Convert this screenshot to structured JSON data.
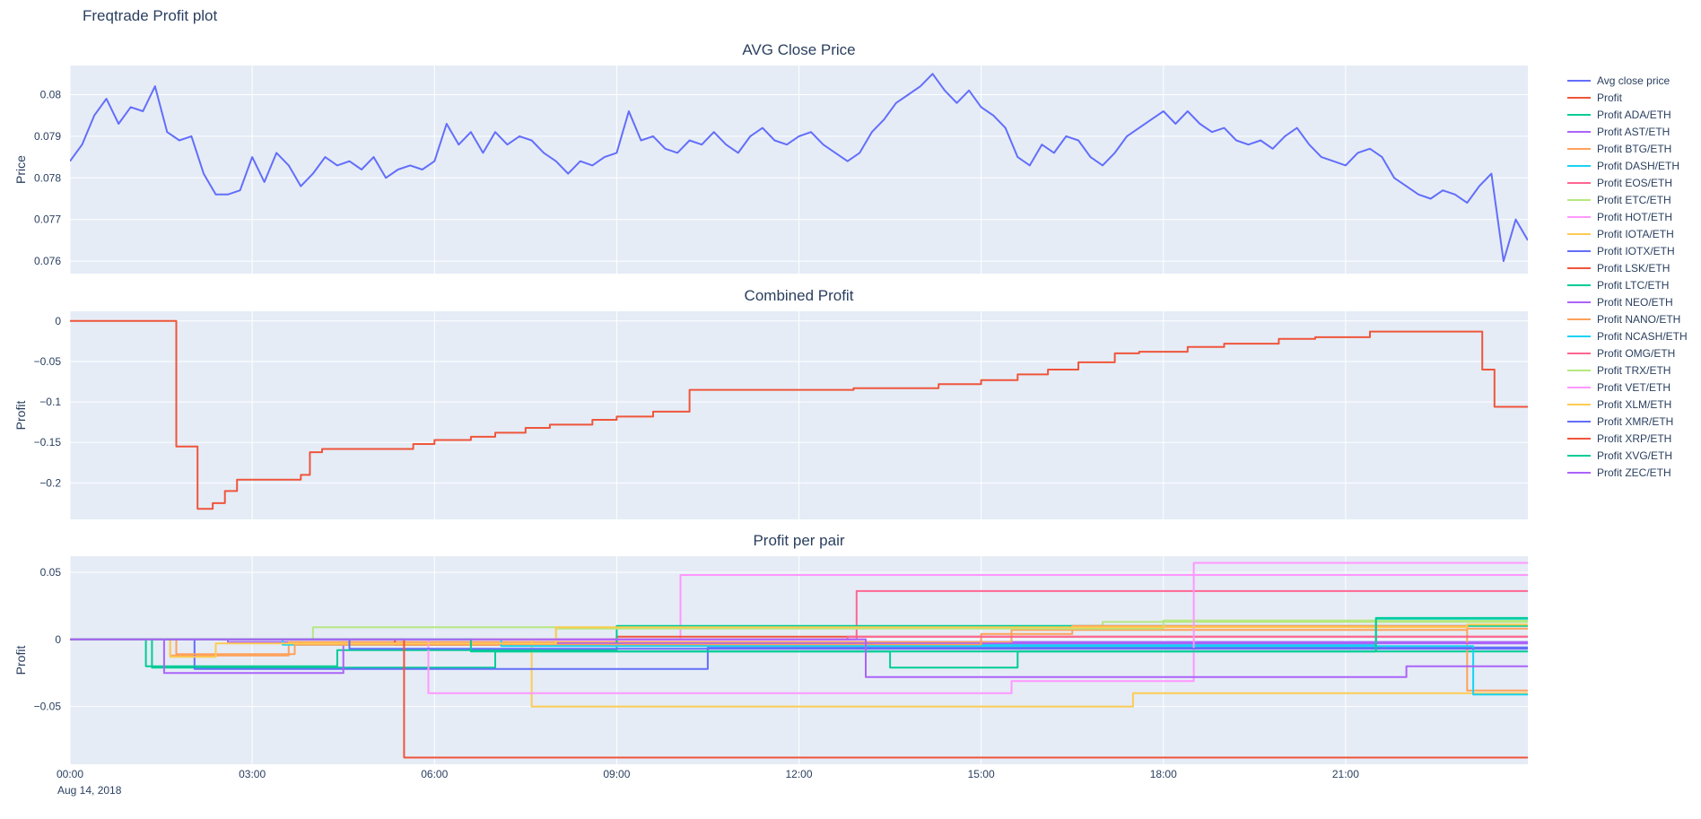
{
  "page": {
    "title": "Freqtrade Profit plot"
  },
  "colors": {
    "background": "#ffffff",
    "plot_bg": "#e5ecf6",
    "grid": "#ffffff",
    "text": "#2a3f5f"
  },
  "x_axis": {
    "range": [
      0,
      24
    ],
    "date_label": "Aug 14, 2018",
    "ticks": [
      {
        "t": 0,
        "label": "00:00"
      },
      {
        "t": 3,
        "label": "03:00"
      },
      {
        "t": 6,
        "label": "06:00"
      },
      {
        "t": 9,
        "label": "09:00"
      },
      {
        "t": 12,
        "label": "12:00"
      },
      {
        "t": 15,
        "label": "15:00"
      },
      {
        "t": 18,
        "label": "18:00"
      },
      {
        "t": 21,
        "label": "21:00"
      }
    ]
  },
  "legend": {
    "items": [
      {
        "label": "Avg close price",
        "color": "#636efa"
      },
      {
        "label": "Profit",
        "color": "#EF553B"
      },
      {
        "label": "Profit ADA/ETH",
        "color": "#00cc96"
      },
      {
        "label": "Profit AST/ETH",
        "color": "#ab63fa"
      },
      {
        "label": "Profit BTG/ETH",
        "color": "#FFA15A"
      },
      {
        "label": "Profit DASH/ETH",
        "color": "#19d3f3"
      },
      {
        "label": "Profit EOS/ETH",
        "color": "#FF6692"
      },
      {
        "label": "Profit ETC/ETH",
        "color": "#B6E880"
      },
      {
        "label": "Profit HOT/ETH",
        "color": "#FF97FF"
      },
      {
        "label": "Profit IOTA/ETH",
        "color": "#FECB52"
      },
      {
        "label": "Profit IOTX/ETH",
        "color": "#636efa"
      },
      {
        "label": "Profit LSK/ETH",
        "color": "#EF553B"
      },
      {
        "label": "Profit LTC/ETH",
        "color": "#00cc96"
      },
      {
        "label": "Profit NEO/ETH",
        "color": "#ab63fa"
      },
      {
        "label": "Profit NANO/ETH",
        "color": "#FFA15A"
      },
      {
        "label": "Profit NCASH/ETH",
        "color": "#19d3f3"
      },
      {
        "label": "Profit OMG/ETH",
        "color": "#FF6692"
      },
      {
        "label": "Profit TRX/ETH",
        "color": "#B6E880"
      },
      {
        "label": "Profit VET/ETH",
        "color": "#FF97FF"
      },
      {
        "label": "Profit XLM/ETH",
        "color": "#FECB52"
      },
      {
        "label": "Profit XMR/ETH",
        "color": "#636efa"
      },
      {
        "label": "Profit XRP/ETH",
        "color": "#EF553B"
      },
      {
        "label": "Profit XVG/ETH",
        "color": "#00cc96"
      },
      {
        "label": "Profit ZEC/ETH",
        "color": "#ab63fa"
      }
    ]
  },
  "chart_data": [
    {
      "type": "line",
      "title": "AVG Close Price",
      "ylabel": "Price",
      "ylim": [
        0.0757,
        0.0807
      ],
      "yticks": [
        {
          "v": 0.076,
          "label": "0.076"
        },
        {
          "v": 0.077,
          "label": "0.077"
        },
        {
          "v": 0.078,
          "label": "0.078"
        },
        {
          "v": 0.079,
          "label": "0.079"
        },
        {
          "v": 0.08,
          "label": "0.08"
        }
      ],
      "series": [
        {
          "name": "Avg close price",
          "color": "#636efa",
          "x0": 0,
          "dx": 0.2,
          "values": [
            0.0784,
            0.0788,
            0.0795,
            0.0799,
            0.0793,
            0.0797,
            0.0796,
            0.0802,
            0.0791,
            0.0789,
            0.079,
            0.0781,
            0.0776,
            0.0776,
            0.0777,
            0.0785,
            0.0779,
            0.0786,
            0.0783,
            0.0778,
            0.0781,
            0.0785,
            0.0783,
            0.0784,
            0.0782,
            0.0785,
            0.078,
            0.0782,
            0.0783,
            0.0782,
            0.0784,
            0.0793,
            0.0788,
            0.0791,
            0.0786,
            0.0791,
            0.0788,
            0.079,
            0.0789,
            0.0786,
            0.0784,
            0.0781,
            0.0784,
            0.0783,
            0.0785,
            0.0786,
            0.0796,
            0.0789,
            0.079,
            0.0787,
            0.0786,
            0.0789,
            0.0788,
            0.0791,
            0.0788,
            0.0786,
            0.079,
            0.0792,
            0.0789,
            0.0788,
            0.079,
            0.0791,
            0.0788,
            0.0786,
            0.0784,
            0.0786,
            0.0791,
            0.0794,
            0.0798,
            0.08,
            0.0802,
            0.0805,
            0.0801,
            0.0798,
            0.0801,
            0.0797,
            0.0795,
            0.0792,
            0.0785,
            0.0783,
            0.0788,
            0.0786,
            0.079,
            0.0789,
            0.0785,
            0.0783,
            0.0786,
            0.079,
            0.0792,
            0.0794,
            0.0796,
            0.0793,
            0.0796,
            0.0793,
            0.0791,
            0.0792,
            0.0789,
            0.0788,
            0.0789,
            0.0787,
            0.079,
            0.0792,
            0.0788,
            0.0785,
            0.0784,
            0.0783,
            0.0786,
            0.0787,
            0.0785,
            0.078,
            0.0778,
            0.0776,
            0.0775,
            0.0777,
            0.0776,
            0.0774,
            0.0778,
            0.0781,
            0.076,
            0.077,
            0.0765
          ]
        }
      ]
    },
    {
      "type": "line",
      "title": "Combined Profit",
      "ylabel": "Profit",
      "ylim": [
        -0.245,
        0.012
      ],
      "yticks": [
        {
          "v": 0,
          "label": "0"
        },
        {
          "v": -0.05,
          "label": "−0.05"
        },
        {
          "v": -0.1,
          "label": "−0.1"
        },
        {
          "v": -0.15,
          "label": "−0.15"
        },
        {
          "v": -0.2,
          "label": "−0.2"
        }
      ],
      "series": [
        {
          "name": "Profit",
          "color": "#EF553B",
          "step": true,
          "points": [
            [
              0,
              0
            ],
            [
              1.75,
              -0.155
            ],
            [
              2.1,
              -0.232
            ],
            [
              2.35,
              -0.225
            ],
            [
              2.55,
              -0.21
            ],
            [
              2.75,
              -0.196
            ],
            [
              3.8,
              -0.19
            ],
            [
              3.95,
              -0.162
            ],
            [
              4.15,
              -0.158
            ],
            [
              5.65,
              -0.152
            ],
            [
              6.0,
              -0.147
            ],
            [
              6.6,
              -0.143
            ],
            [
              7.0,
              -0.138
            ],
            [
              7.5,
              -0.132
            ],
            [
              7.9,
              -0.128
            ],
            [
              8.6,
              -0.122
            ],
            [
              9.0,
              -0.118
            ],
            [
              9.6,
              -0.112
            ],
            [
              10.2,
              -0.085
            ],
            [
              12.9,
              -0.083
            ],
            [
              14.3,
              -0.078
            ],
            [
              15.0,
              -0.073
            ],
            [
              15.6,
              -0.066
            ],
            [
              16.1,
              -0.06
            ],
            [
              16.6,
              -0.051
            ],
            [
              17.2,
              -0.04
            ],
            [
              17.6,
              -0.038
            ],
            [
              18.4,
              -0.032
            ],
            [
              19.0,
              -0.028
            ],
            [
              19.9,
              -0.022
            ],
            [
              20.5,
              -0.02
            ],
            [
              21.4,
              -0.013
            ],
            [
              23.25,
              -0.06
            ],
            [
              23.45,
              -0.106
            ],
            [
              24,
              -0.106
            ]
          ]
        }
      ]
    },
    {
      "type": "line",
      "title": "Profit per pair",
      "ylabel": "Profit",
      "ylim": [
        -0.093,
        0.062
      ],
      "yticks": [
        {
          "v": 0.05,
          "label": "0.05"
        },
        {
          "v": 0,
          "label": "0"
        },
        {
          "v": -0.05,
          "label": "−0.05"
        }
      ],
      "series": [
        {
          "name": "Profit ADA/ETH",
          "color": "#00cc96",
          "step": true,
          "points": [
            [
              0,
              0
            ],
            [
              1.35,
              -0.021
            ],
            [
              7.0,
              -0.009
            ],
            [
              13.5,
              -0.021
            ],
            [
              15.6,
              -0.009
            ],
            [
              24,
              -0.009
            ]
          ]
        },
        {
          "name": "Profit AST/ETH",
          "color": "#ab63fa",
          "step": true,
          "points": [
            [
              0,
              0
            ],
            [
              2.6,
              -0.002
            ],
            [
              24,
              -0.002
            ]
          ]
        },
        {
          "name": "Profit BTG/ETH",
          "color": "#FFA15A",
          "step": true,
          "points": [
            [
              0,
              0
            ],
            [
              1.65,
              -0.012
            ],
            [
              3.6,
              -0.002
            ],
            [
              15.5,
              0.007
            ],
            [
              23.0,
              -0.038
            ],
            [
              24,
              -0.038
            ]
          ]
        },
        {
          "name": "Profit DASH/ETH",
          "color": "#19d3f3",
          "step": true,
          "points": [
            [
              0,
              0
            ],
            [
              3.5,
              -0.004
            ],
            [
              21.5,
              0.015
            ],
            [
              24,
              0.015
            ]
          ]
        },
        {
          "name": "Profit EOS/ETH",
          "color": "#FF6692",
          "step": true,
          "points": [
            [
              0,
              0
            ],
            [
              12.95,
              0.036
            ],
            [
              24,
              0.036
            ]
          ]
        },
        {
          "name": "Profit ETC/ETH",
          "color": "#B6E880",
          "step": true,
          "points": [
            [
              0,
              0
            ],
            [
              4.0,
              0.009
            ],
            [
              17.0,
              0.013
            ],
            [
              24,
              0.013
            ]
          ]
        },
        {
          "name": "Profit HOT/ETH",
          "color": "#FF97FF",
          "step": true,
          "points": [
            [
              0,
              0
            ],
            [
              10.05,
              0.048
            ],
            [
              24,
              0.048
            ]
          ]
        },
        {
          "name": "Profit IOTA/ETH",
          "color": "#FECB52",
          "step": true,
          "points": [
            [
              0,
              0
            ],
            [
              7.6,
              -0.05
            ],
            [
              17.5,
              -0.04
            ],
            [
              24,
              -0.04
            ]
          ]
        },
        {
          "name": "Profit IOTX/ETH",
          "color": "#636efa",
          "step": true,
          "points": [
            [
              0,
              0
            ],
            [
              2.05,
              -0.022
            ],
            [
              10.5,
              -0.006
            ],
            [
              24,
              -0.006
            ]
          ]
        },
        {
          "name": "Profit LSK/ETH",
          "color": "#EF553B",
          "step": true,
          "points": [
            [
              0,
              0
            ],
            [
              5.35,
              -0.004
            ],
            [
              9.0,
              0.002
            ],
            [
              24,
              0.002
            ]
          ]
        },
        {
          "name": "Profit LTC/ETH",
          "color": "#00cc96",
          "step": true,
          "points": [
            [
              0,
              0
            ],
            [
              1.25,
              -0.02
            ],
            [
              4.4,
              -0.008
            ],
            [
              9.0,
              0.01
            ],
            [
              24,
              0.01
            ]
          ]
        },
        {
          "name": "Profit NEO/ETH",
          "color": "#ab63fa",
          "step": true,
          "points": [
            [
              0,
              0
            ],
            [
              1.55,
              -0.025
            ],
            [
              4.5,
              -0.003
            ],
            [
              24,
              -0.003
            ]
          ]
        },
        {
          "name": "Profit NANO/ETH",
          "color": "#FFA15A",
          "step": true,
          "points": [
            [
              0,
              0
            ],
            [
              1.75,
              -0.011
            ],
            [
              3.7,
              -0.004
            ],
            [
              15.0,
              0.004
            ],
            [
              16.5,
              0.01
            ],
            [
              23.0,
              0.008
            ],
            [
              24,
              0.008
            ]
          ]
        },
        {
          "name": "Profit NCASH/ETH",
          "color": "#19d3f3",
          "step": true,
          "points": [
            [
              0,
              0
            ],
            [
              7.1,
              -0.005
            ],
            [
              23.1,
              -0.041
            ],
            [
              24,
              -0.041
            ]
          ]
        },
        {
          "name": "Profit OMG/ETH",
          "color": "#FF6692",
          "step": true,
          "points": [
            [
              0,
              0
            ],
            [
              12.8,
              0.002
            ],
            [
              24,
              0.002
            ]
          ]
        },
        {
          "name": "Profit TRX/ETH",
          "color": "#B6E880",
          "step": true,
          "points": [
            [
              0,
              0
            ],
            [
              8.0,
              0.008
            ],
            [
              18.0,
              0.014
            ],
            [
              24,
              0.014
            ]
          ]
        },
        {
          "name": "Profit VET/ETH",
          "color": "#FF97FF",
          "step": true,
          "points": [
            [
              0,
              0
            ],
            [
              5.9,
              -0.04
            ],
            [
              15.5,
              -0.031
            ],
            [
              18.5,
              0.057
            ],
            [
              24,
              0.057
            ]
          ]
        },
        {
          "name": "Profit XLM/ETH",
          "color": "#FECB52",
          "step": true,
          "points": [
            [
              0,
              0
            ],
            [
              1.65,
              -0.013
            ],
            [
              2.4,
              -0.003
            ],
            [
              8.0,
              0.009
            ],
            [
              23.0,
              0.011
            ],
            [
              24,
              0.011
            ]
          ]
        },
        {
          "name": "Profit XMR/ETH",
          "color": "#636efa",
          "step": true,
          "points": [
            [
              0,
              0
            ],
            [
              4.6,
              -0.007
            ],
            [
              24,
              -0.007
            ]
          ]
        },
        {
          "name": "Profit XRP/ETH",
          "color": "#EF553B",
          "step": true,
          "points": [
            [
              0,
              0
            ],
            [
              5.5,
              -0.088
            ],
            [
              24,
              -0.088
            ]
          ]
        },
        {
          "name": "Profit XVG/ETH",
          "color": "#00cc96",
          "step": true,
          "points": [
            [
              0,
              0
            ],
            [
              6.6,
              -0.009
            ],
            [
              21.5,
              0.016
            ],
            [
              24,
              0.016
            ]
          ]
        },
        {
          "name": "Profit ZEC/ETH",
          "color": "#ab63fa",
          "step": true,
          "points": [
            [
              0,
              0
            ],
            [
              13.1,
              -0.028
            ],
            [
              22.0,
              -0.02
            ],
            [
              24,
              -0.02
            ]
          ]
        }
      ]
    }
  ]
}
